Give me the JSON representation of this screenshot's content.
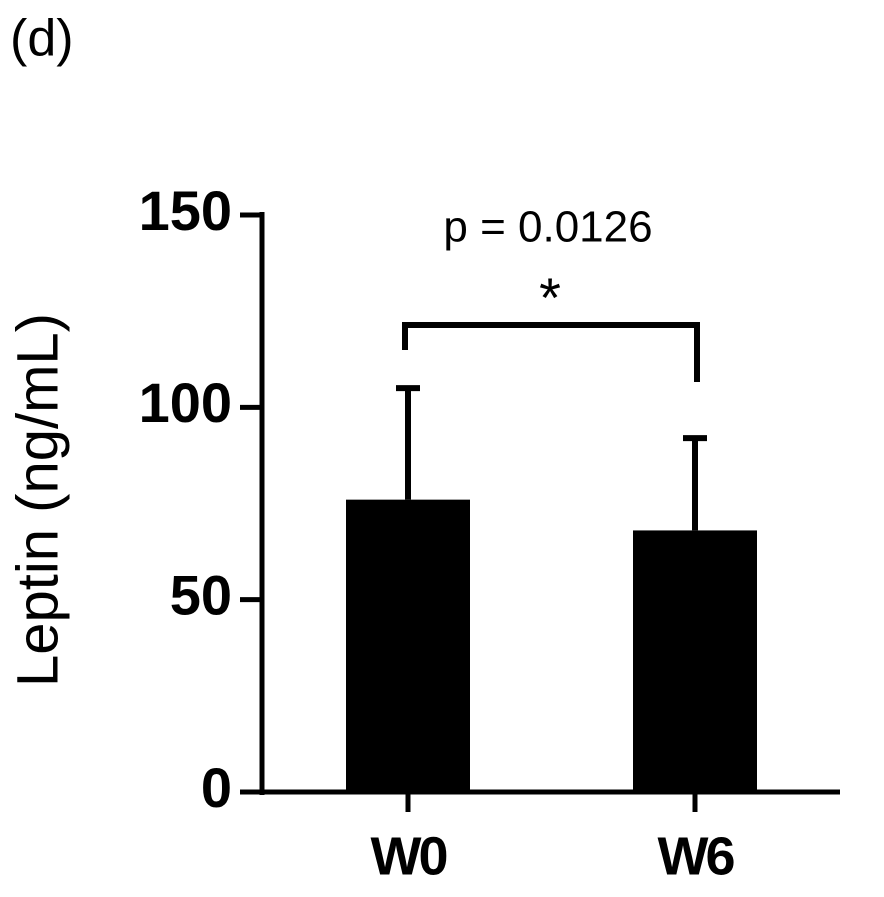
{
  "chart_data": {
    "type": "bar",
    "panel_label": "(d)",
    "ylabel": "Leptin (ng/mL)",
    "annotation": "p = 0.0126",
    "significance": "*",
    "categories": [
      "W0",
      "W6"
    ],
    "values": [
      76,
      68
    ],
    "errors": [
      29,
      24
    ],
    "color": "#000000",
    "ylim": [
      0,
      150
    ],
    "yticks": [
      0,
      50,
      100,
      150
    ]
  }
}
